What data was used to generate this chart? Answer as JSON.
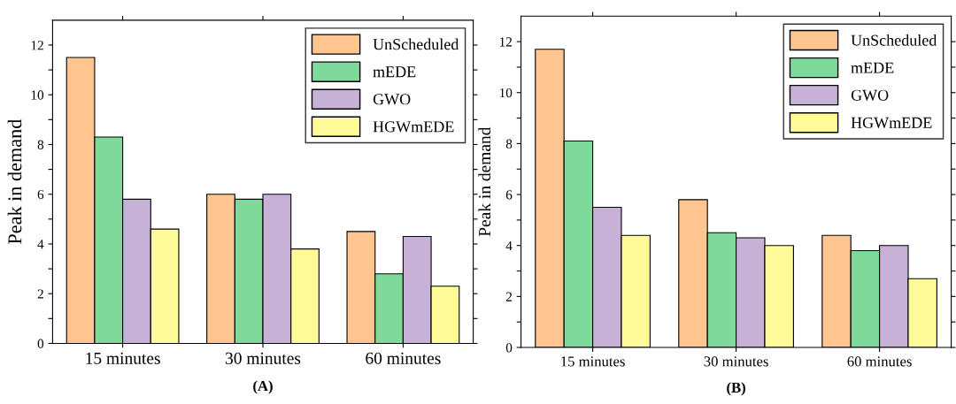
{
  "chart_data": [
    {
      "type": "bar",
      "ylabel": "Peak in demand",
      "categories": [
        "15 minutes",
        "30 minutes",
        "60 minutes"
      ],
      "ylim": [
        0,
        13
      ],
      "yticks": [
        0,
        {
          "value": 1,
          "label": null
        },
        2,
        {
          "value": 3,
          "label": null
        },
        4,
        {
          "value": 5,
          "label": null
        },
        6,
        {
          "value": 7,
          "label": null
        },
        8,
        {
          "value": 9,
          "label": null
        },
        10,
        {
          "value": 11,
          "label": null
        },
        12
      ],
      "legend": "top right",
      "grid": false,
      "annotations": [
        "(A)"
      ],
      "series": [
        {
          "name": "UnScheduled",
          "color": "#ffc591",
          "values": [
            11.5,
            6.0,
            4.5
          ]
        },
        {
          "name": "mEDE",
          "color": "#7fd99a",
          "values": [
            8.3,
            5.8,
            2.8
          ]
        },
        {
          "name": "GWO",
          "color": "#c8b1d6",
          "values": [
            5.8,
            6.0,
            4.3
          ]
        },
        {
          "name": "HGWmEDE",
          "color": "#fffa98",
          "values": [
            4.6,
            3.8,
            2.3
          ]
        }
      ]
    },
    {
      "type": "bar",
      "ylabel": "Peak in demand",
      "categories": [
        "15 minutes",
        "30 minutes",
        "60 minutes"
      ],
      "ylim": [
        0,
        13
      ],
      "yticks": [
        0,
        {
          "value": 1,
          "label": null
        },
        2,
        {
          "value": 3,
          "label": null
        },
        4,
        {
          "value": 5,
          "label": null
        },
        6,
        {
          "value": 7,
          "label": null
        },
        8,
        {
          "value": 9,
          "label": null
        },
        10,
        {
          "value": 11,
          "label": null
        },
        12
      ],
      "legend": "top right",
      "grid": false,
      "annotations": [
        "(B)"
      ],
      "series": [
        {
          "name": "UnScheduled",
          "color": "#ffc591",
          "values": [
            11.7,
            5.8,
            4.4
          ]
        },
        {
          "name": "mEDE",
          "color": "#7fd99a",
          "values": [
            8.1,
            4.5,
            3.8
          ]
        },
        {
          "name": "GWO",
          "color": "#c8b1d6",
          "values": [
            5.5,
            4.3,
            4.0
          ]
        },
        {
          "name": "HGWmEDE",
          "color": "#fffa98",
          "values": [
            4.4,
            4.0,
            2.7
          ]
        }
      ]
    }
  ]
}
